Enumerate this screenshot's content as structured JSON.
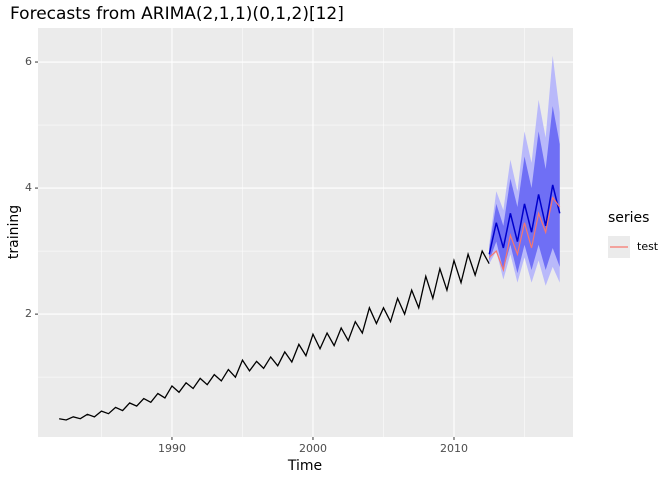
{
  "chart_data": {
    "type": "forecast",
    "title": "Forecasts from ARIMA(2,1,1)(0,1,2)[12]",
    "x_label": "Time",
    "y_label": "training",
    "xlim": [
      1980.5,
      2018.44
    ],
    "ylim": [
      0.05,
      6.54
    ],
    "xticks": [
      1990,
      2000,
      2010
    ],
    "yticks": [
      2,
      4,
      6
    ],
    "grid": true,
    "training": {
      "color": "#000000",
      "x": [
        1982,
        1982.5,
        1983,
        1983.5,
        1984,
        1984.5,
        1985,
        1985.5,
        1986,
        1986.5,
        1987,
        1987.5,
        1988,
        1988.5,
        1989,
        1989.5,
        1990,
        1990.5,
        1991,
        1991.5,
        1992,
        1992.5,
        1993,
        1993.5,
        1994,
        1994.5,
        1995,
        1995.5,
        1996,
        1996.5,
        1997,
        1997.5,
        1998,
        1998.5,
        1999,
        1999.5,
        2000,
        2000.5,
        2001,
        2001.5,
        2002,
        2002.5,
        2003,
        2003.5,
        2004,
        2004.5,
        2005,
        2005.5,
        2006,
        2006.5,
        2007,
        2007.5,
        2008,
        2008.5,
        2009,
        2009.5,
        2010,
        2010.5,
        2011,
        2011.5,
        2012,
        2012.5
      ],
      "values": [
        0.34,
        0.32,
        0.37,
        0.34,
        0.41,
        0.37,
        0.46,
        0.42,
        0.52,
        0.47,
        0.59,
        0.54,
        0.66,
        0.6,
        0.74,
        0.67,
        0.86,
        0.76,
        0.91,
        0.82,
        0.98,
        0.88,
        1.04,
        0.94,
        1.12,
        1.0,
        1.27,
        1.1,
        1.25,
        1.14,
        1.32,
        1.18,
        1.4,
        1.24,
        1.52,
        1.34,
        1.68,
        1.45,
        1.7,
        1.5,
        1.78,
        1.58,
        1.88,
        1.7,
        2.1,
        1.85,
        2.1,
        1.88,
        2.25,
        2.0,
        2.38,
        2.1,
        2.6,
        2.25,
        2.72,
        2.38,
        2.85,
        2.5,
        2.95,
        2.62,
        3.0,
        2.8
      ]
    },
    "forecast": {
      "color": "#0000cc",
      "band80_color": "#6f6ff5",
      "band95_color": "#b9b9fa",
      "x": [
        2012.5,
        2013,
        2013.5,
        2014,
        2014.5,
        2015,
        2015.5,
        2016,
        2016.5,
        2017,
        2017.5
      ],
      "values": [
        2.95,
        3.45,
        3.05,
        3.6,
        3.15,
        3.75,
        3.3,
        3.9,
        3.4,
        4.05,
        3.6
      ],
      "lower80": [
        2.85,
        3.15,
        2.7,
        3.1,
        2.65,
        3.1,
        2.7,
        3.1,
        2.7,
        3.05,
        2.75
      ],
      "upper80": [
        3.05,
        3.75,
        3.4,
        4.15,
        3.7,
        4.5,
        4.0,
        4.9,
        4.3,
        5.3,
        4.7
      ],
      "lower95": [
        2.8,
        3.0,
        2.55,
        2.95,
        2.5,
        2.9,
        2.5,
        2.85,
        2.45,
        2.75,
        2.5
      ],
      "upper95": [
        3.1,
        3.95,
        3.65,
        4.45,
        3.95,
        4.9,
        4.4,
        5.4,
        4.8,
        6.1,
        5.2
      ]
    },
    "legend_title": "series",
    "series": [
      {
        "name": "test",
        "color": "#f8766d",
        "x": [
          2012.5,
          2013,
          2013.5,
          2014,
          2014.5,
          2015,
          2015.5,
          2016,
          2016.5,
          2017,
          2017.5
        ],
        "values": [
          2.9,
          3.0,
          2.7,
          3.25,
          2.95,
          3.45,
          3.05,
          3.6,
          3.3,
          3.85,
          3.7
        ]
      }
    ]
  }
}
